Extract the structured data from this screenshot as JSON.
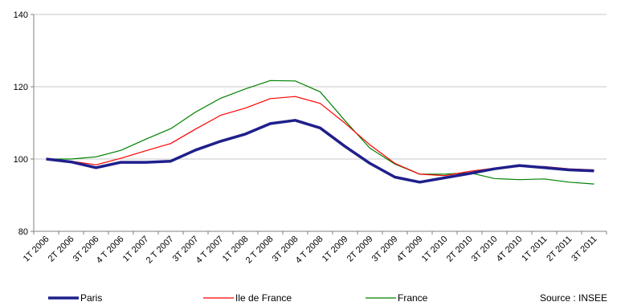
{
  "chart_data": {
    "type": "line",
    "title": "",
    "xlabel": "",
    "ylabel": "",
    "ylim": [
      80,
      140
    ],
    "yticks": [
      80,
      100,
      120,
      140
    ],
    "grid": "horizontal",
    "legend_position": "bottom",
    "categories": [
      "1T 2006",
      "2T 2006",
      "3T 2006",
      "4 T 2006",
      "1T 2007",
      "2 T 2007",
      "3T 2007",
      "4 T 2007",
      "1T 2008",
      "2 T 2008",
      "3T 2008",
      "4 T 2008",
      "1T 2009",
      "2T 2009",
      "3T 2009",
      "4T 2009",
      "1T 2010",
      "2T 2010",
      "3T 2010",
      "4T 2010",
      "1T 2011",
      "2T 2011",
      "3T 2011"
    ],
    "series": [
      {
        "name": "Paris",
        "color": "#1f1f8c",
        "values": [
          100.0,
          99.2,
          97.6,
          99.1,
          99.1,
          99.4,
          102.5,
          104.9,
          106.9,
          109.8,
          110.7,
          108.6,
          103.5,
          98.8,
          95.0,
          93.6,
          94.8,
          96.0,
          97.3,
          98.2,
          97.6,
          97.0,
          96.7
        ]
      },
      {
        "name": "Ile de France",
        "color": "#ff0000",
        "values": [
          100.0,
          99.4,
          98.4,
          100.2,
          102.3,
          104.3,
          108.3,
          112.1,
          114.1,
          116.7,
          117.3,
          115.4,
          109.9,
          103.9,
          98.8,
          95.8,
          95.4,
          96.6,
          97.5,
          97.9,
          97.9,
          97.3,
          97.0
        ]
      },
      {
        "name": "France",
        "color": "#008000",
        "values": [
          100.0,
          100.0,
          100.6,
          102.4,
          105.5,
          108.4,
          113.0,
          116.8,
          119.4,
          121.7,
          121.6,
          118.6,
          110.6,
          103.0,
          98.6,
          95.8,
          95.8,
          96.2,
          94.6,
          94.3,
          94.5,
          93.6,
          93.1
        ]
      }
    ],
    "source": "Source : INSEE"
  }
}
